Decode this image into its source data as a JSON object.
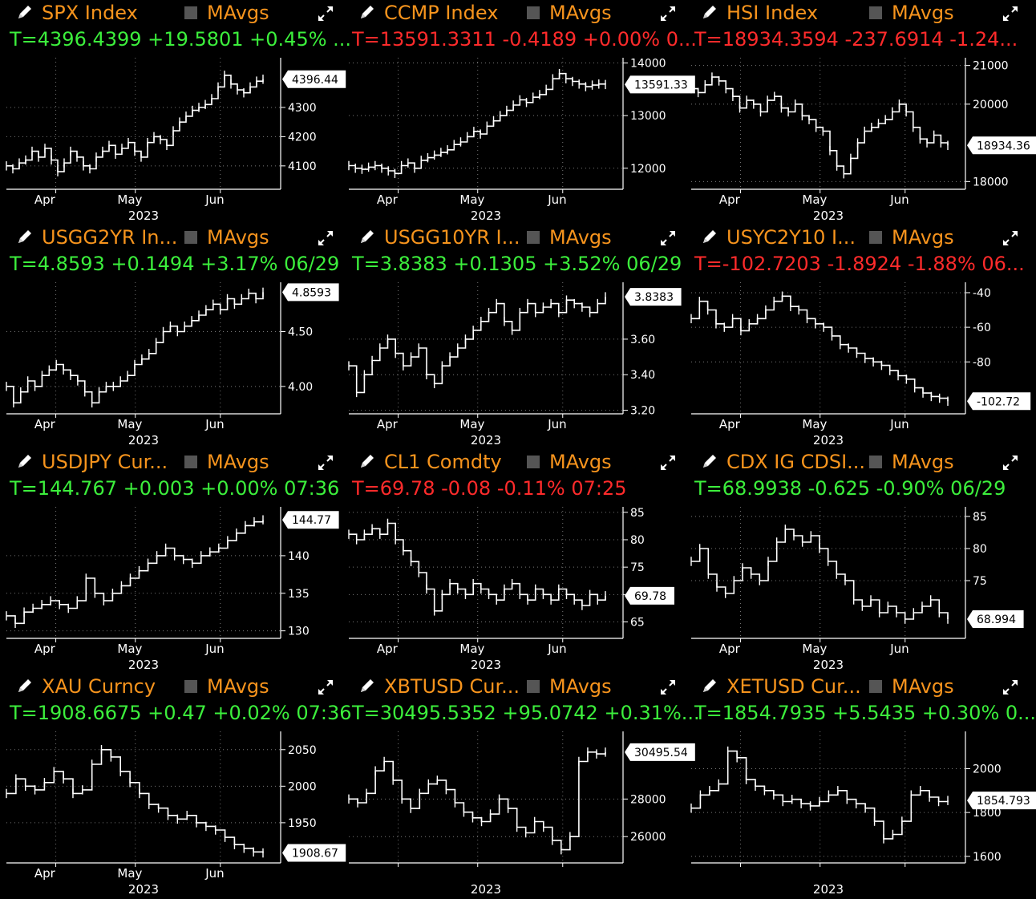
{
  "colors": {
    "ticker": "#f7941d",
    "up": "#3cef3c",
    "down": "#ff2b2b",
    "line": "#ffffff",
    "grid": "#777777",
    "checkbox": "#555555"
  },
  "panels": [
    {
      "ticker": "SPX Index",
      "ma_label": "MAvgs",
      "quote": "T=4396.4399 +19.5801 +0.45% ...",
      "direction": "up",
      "chart_data": {
        "type": "line",
        "x_labels": [
          "Apr",
          "May",
          "Jun"
        ],
        "year_label": "2023",
        "y_ticks": [
          "4100",
          "4200",
          "4300"
        ],
        "last_label": "4396.44",
        "ylim": [
          4020,
          4470
        ],
        "values": [
          4100,
          4090,
          4110,
          4120,
          4150,
          4130,
          4160,
          4120,
          4080,
          4110,
          4150,
          4130,
          4100,
          4090,
          4130,
          4150,
          4170,
          4140,
          4160,
          4180,
          4150,
          4130,
          4180,
          4200,
          4190,
          4170,
          4220,
          4250,
          4270,
          4290,
          4300,
          4310,
          4330,
          4370,
          4410,
          4380,
          4360,
          4350,
          4370,
          4390,
          4396.44
        ]
      }
    },
    {
      "ticker": "CCMP Index",
      "ma_label": "MAvgs",
      "quote": "T=13591.3311 -0.4189 +0.00% 0...",
      "direction": "down",
      "chart_data": {
        "type": "line",
        "x_labels": [
          "Apr",
          "May",
          "Jun"
        ],
        "year_label": "2023",
        "y_ticks": [
          "12000",
          "13000",
          "14000"
        ],
        "last_label": "13591.33",
        "ylim": [
          11600,
          14100
        ],
        "values": [
          12050,
          12000,
          11980,
          12020,
          12050,
          12000,
          11950,
          11900,
          12050,
          12100,
          12000,
          12150,
          12200,
          12250,
          12300,
          12350,
          12450,
          12500,
          12600,
          12700,
          12650,
          12800,
          12900,
          13000,
          13100,
          13200,
          13300,
          13250,
          13350,
          13400,
          13500,
          13700,
          13800,
          13700,
          13650,
          13600,
          13550,
          13580,
          13600,
          13591.33
        ]
      }
    },
    {
      "ticker": "HSI Index",
      "ma_label": "MAvgs",
      "quote": "T=18934.3594 -237.6914 -1.24...",
      "direction": "down",
      "chart_data": {
        "type": "line",
        "x_labels": [
          "Apr",
          "May",
          "Jun"
        ],
        "year_label": "2023",
        "y_ticks": [
          "18000",
          "20000",
          "21000"
        ],
        "last_label": "18934.36",
        "ylim": [
          17800,
          21200
        ],
        "values": [
          20400,
          20300,
          20500,
          20700,
          20600,
          20400,
          20200,
          19900,
          20100,
          20000,
          19800,
          20100,
          20200,
          19900,
          19800,
          20000,
          19700,
          19600,
          19400,
          19300,
          18800,
          18400,
          18200,
          18600,
          19000,
          19300,
          19400,
          19500,
          19600,
          19800,
          20000,
          19800,
          19400,
          19100,
          19000,
          19200,
          19000,
          18934.36
        ]
      }
    },
    {
      "ticker": "USGG2YR In...",
      "ma_label": "MAvgs",
      "quote": "T=4.8593 +0.1494 +3.17% 06/29",
      "direction": "up",
      "chart_data": {
        "type": "line",
        "x_labels": [
          "Apr",
          "May",
          "Jun"
        ],
        "year_label": "2023",
        "y_ticks": [
          "4.00",
          "4.50"
        ],
        "last_label": "4.8593",
        "ylim": [
          3.75,
          4.95
        ],
        "values": [
          4.0,
          3.85,
          3.95,
          4.05,
          4.0,
          4.1,
          4.15,
          4.2,
          4.15,
          4.1,
          4.05,
          3.95,
          3.85,
          3.95,
          4.0,
          4.0,
          4.05,
          4.1,
          4.2,
          4.25,
          4.3,
          4.4,
          4.5,
          4.55,
          4.5,
          4.55,
          4.6,
          4.65,
          4.7,
          4.75,
          4.7,
          4.8,
          4.75,
          4.8,
          4.85,
          4.8,
          4.8593
        ]
      }
    },
    {
      "ticker": "USGG10YR I...",
      "ma_label": "MAvgs",
      "quote": "T=3.8383 +0.1305 +3.52% 06/29",
      "direction": "up",
      "chart_data": {
        "type": "line",
        "x_labels": [
          "Apr",
          "May",
          "Jun"
        ],
        "year_label": "2023",
        "y_ticks": [
          "3.20",
          "3.40",
          "3.60"
        ],
        "last_label": "3.8383",
        "ylim": [
          3.18,
          3.92
        ],
        "values": [
          3.45,
          3.3,
          3.4,
          3.48,
          3.55,
          3.6,
          3.52,
          3.45,
          3.5,
          3.55,
          3.4,
          3.35,
          3.45,
          3.5,
          3.55,
          3.6,
          3.65,
          3.7,
          3.75,
          3.8,
          3.7,
          3.65,
          3.75,
          3.8,
          3.75,
          3.78,
          3.8,
          3.75,
          3.82,
          3.8,
          3.78,
          3.75,
          3.8,
          3.8383
        ]
      }
    },
    {
      "ticker": "USYC2Y10 I...",
      "ma_label": "MAvgs",
      "quote": "T=-102.7203 -1.8924 -1.88% 06...",
      "direction": "down",
      "chart_data": {
        "type": "line",
        "x_labels": [
          "Apr",
          "May",
          "Jun"
        ],
        "year_label": "2023",
        "y_ticks": [
          "-40",
          "-60",
          "-80"
        ],
        "last_label": "-102.72",
        "ylim": [
          -110,
          -34
        ],
        "values": [
          -55,
          -45,
          -50,
          -58,
          -60,
          -55,
          -62,
          -58,
          -55,
          -50,
          -45,
          -42,
          -48,
          -50,
          -55,
          -58,
          -60,
          -65,
          -70,
          -72,
          -75,
          -78,
          -80,
          -82,
          -85,
          -88,
          -90,
          -95,
          -98,
          -100,
          -101,
          -102.72
        ]
      }
    },
    {
      "ticker": "USDJPY Cur...",
      "ma_label": "MAvgs",
      "quote": "T=144.767 +0.003 +0.00% 07:36",
      "direction": "up",
      "chart_data": {
        "type": "line",
        "x_labels": [
          "Apr",
          "May",
          "Jun"
        ],
        "year_label": "2023",
        "y_ticks": [
          "130",
          "135",
          "140"
        ],
        "last_label": "144.77",
        "ylim": [
          129,
          146.5
        ],
        "values": [
          132,
          131,
          132.5,
          133,
          133.5,
          134,
          133.5,
          133,
          134,
          137,
          135,
          134,
          135,
          136,
          137,
          138,
          139,
          140,
          141,
          140,
          139.5,
          139,
          140,
          140.5,
          141,
          142,
          143,
          144,
          144.5,
          144.77
        ]
      }
    },
    {
      "ticker": "CL1 Comdty",
      "ma_label": "MAvgs",
      "quote": "T=69.78 -0.08 -0.11% 07:25",
      "direction": "down",
      "chart_data": {
        "type": "line",
        "x_labels": [
          "Apr",
          "May",
          "Jun"
        ],
        "year_label": "2023",
        "y_ticks": [
          "65",
          "70",
          "75",
          "80",
          "85"
        ],
        "last_label": "69.78",
        "ylim": [
          62,
          86
        ],
        "values": [
          81,
          80,
          81,
          82,
          81,
          83,
          80,
          78,
          76,
          74,
          71,
          67,
          70,
          72,
          71,
          70,
          72,
          71,
          70,
          69,
          71,
          72,
          70,
          69,
          71,
          70,
          69,
          71,
          70,
          69,
          68,
          70,
          69,
          69.78
        ]
      }
    },
    {
      "ticker": "CDX IG CDSI...",
      "ma_label": "MAvgs",
      "quote": "T=68.9938 -0.625 -0.90% 06/29",
      "direction": "up",
      "chart_data": {
        "type": "line",
        "x_labels": [
          "Apr",
          "May",
          "Jun"
        ],
        "year_label": "2023",
        "y_ticks": [
          "75",
          "80",
          "85"
        ],
        "last_label": "68.994",
        "ylim": [
          66,
          86.5
        ],
        "values": [
          78,
          80,
          76,
          74,
          73,
          75,
          77,
          76,
          75,
          78,
          81,
          83,
          82,
          81,
          82,
          80,
          78,
          76,
          75,
          72,
          71,
          72,
          70,
          71,
          70,
          69,
          70,
          71,
          72,
          70,
          68.994
        ]
      }
    },
    {
      "ticker": "XAU Curncy",
      "ma_label": "MAvgs",
      "quote": "T=1908.6675 +0.47 +0.02% 07:36",
      "direction": "up",
      "chart_data": {
        "type": "line",
        "x_labels": [
          "Apr",
          "May",
          "Jun"
        ],
        "year_label": "2023",
        "y_ticks": [
          "1950",
          "2000",
          "2050"
        ],
        "last_label": "1908.67",
        "ylim": [
          1895,
          2075
        ],
        "values": [
          1990,
          2010,
          2000,
          1995,
          2005,
          2020,
          2010,
          1990,
          1995,
          2030,
          2050,
          2040,
          2020,
          2005,
          1990,
          1975,
          1970,
          1960,
          1955,
          1960,
          1950,
          1945,
          1940,
          1930,
          1920,
          1915,
          1910,
          1908.67
        ]
      }
    },
    {
      "ticker": "XBTUSD Cur...",
      "ma_label": "MAvgs",
      "quote": "T=30495.5352 +95.0742 +0.31%...",
      "direction": "up",
      "chart_data": {
        "type": "line",
        "x_labels": [],
        "year_label": "2023",
        "y_ticks": [
          "26000",
          "28000"
        ],
        "last_label": "30495.54",
        "ylim": [
          24600,
          31600
        ],
        "values": [
          28000,
          27800,
          28300,
          29500,
          30000,
          29000,
          28000,
          27500,
          28300,
          28800,
          29000,
          28500,
          27800,
          27300,
          27000,
          26800,
          27200,
          28000,
          27500,
          26500,
          26200,
          26800,
          26500,
          25800,
          25300,
          26000,
          30000,
          30500,
          30400,
          30495.54
        ]
      }
    },
    {
      "ticker": "XETUSD Cur...",
      "ma_label": "MAvgs",
      "quote": "T=1854.7935 +5.5435 +0.30% 0...",
      "direction": "up",
      "chart_data": {
        "type": "line",
        "x_labels": [],
        "year_label": "2023",
        "y_ticks": [
          "1600",
          "1800",
          "2000"
        ],
        "last_label": "1854.793",
        "ylim": [
          1570,
          2170
        ],
        "values": [
          1820,
          1880,
          1900,
          1930,
          2080,
          2050,
          1950,
          1920,
          1900,
          1880,
          1850,
          1860,
          1840,
          1830,
          1850,
          1880,
          1900,
          1860,
          1840,
          1820,
          1760,
          1680,
          1700,
          1760,
          1880,
          1900,
          1870,
          1850,
          1854.793
        ]
      }
    }
  ]
}
